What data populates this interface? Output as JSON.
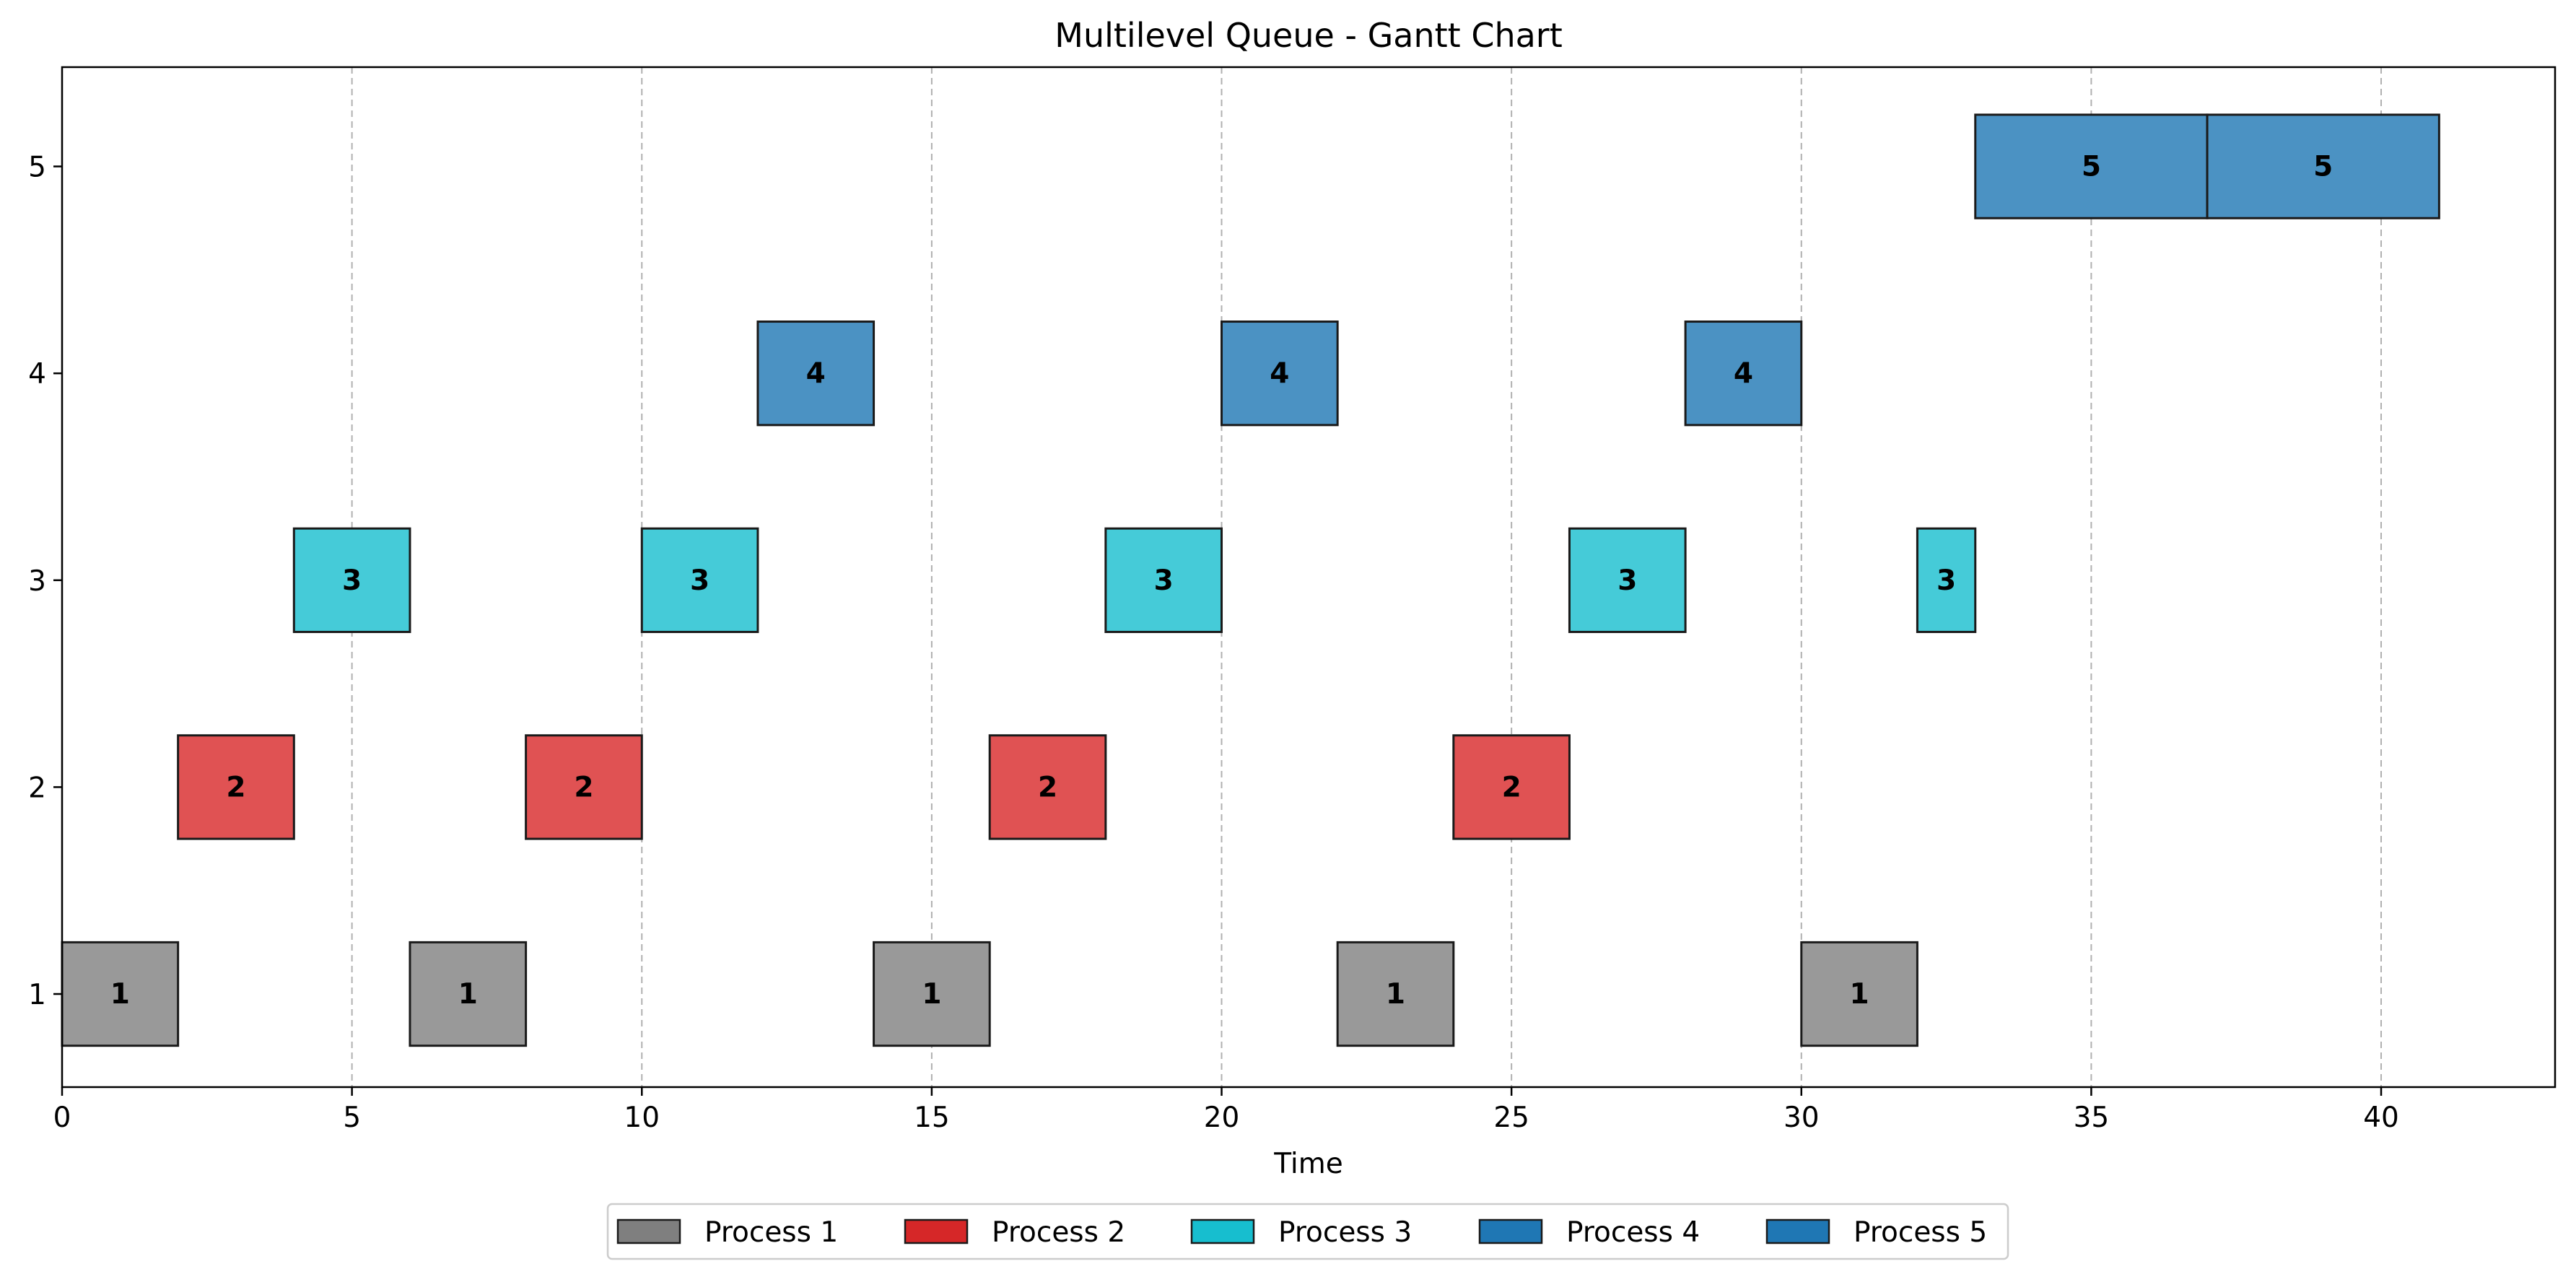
{
  "chart_data": {
    "type": "gantt",
    "title": "Multilevel Queue - Gantt Chart",
    "xlabel": "Time",
    "ylabel": "",
    "xlim": [
      0,
      43
    ],
    "ylim": [
      0.55,
      5.48
    ],
    "x_ticks": [
      0,
      5,
      10,
      15,
      20,
      25,
      30,
      35,
      40
    ],
    "y_ticks": [
      1,
      2,
      3,
      4,
      5
    ],
    "grid": "x dashed vertical lines",
    "legend_position": "bottom-center below axes",
    "series": [
      {
        "name": "Process 1",
        "queue": 1,
        "label": "1",
        "legend_color": "#7f7f7f",
        "bar_color": "#999999",
        "segments": [
          [
            0,
            2
          ],
          [
            6,
            8
          ],
          [
            14,
            16
          ],
          [
            22,
            24
          ],
          [
            30,
            32
          ]
        ]
      },
      {
        "name": "Process 2",
        "queue": 2,
        "label": "2",
        "legend_color": "#d62728",
        "bar_color": "#e05253",
        "segments": [
          [
            2,
            4
          ],
          [
            8,
            10
          ],
          [
            16,
            18
          ],
          [
            24,
            26
          ]
        ]
      },
      {
        "name": "Process 3",
        "queue": 3,
        "label": "3",
        "legend_color": "#17becf",
        "bar_color": "#45cbd8",
        "segments": [
          [
            4,
            6
          ],
          [
            10,
            12
          ],
          [
            18,
            20
          ],
          [
            26,
            28
          ],
          [
            32,
            33
          ]
        ]
      },
      {
        "name": "Process 4",
        "queue": 4,
        "label": "4",
        "legend_color": "#1f77b4",
        "bar_color": "#4b92c3",
        "segments": [
          [
            12,
            14
          ],
          [
            20,
            22
          ],
          [
            28,
            30
          ]
        ]
      },
      {
        "name": "Process 5",
        "queue": 5,
        "label": "5",
        "legend_color": "#1f77b4",
        "bar_color": "#4b92c3",
        "segments": [
          [
            33,
            37
          ],
          [
            37,
            41
          ]
        ]
      }
    ]
  }
}
